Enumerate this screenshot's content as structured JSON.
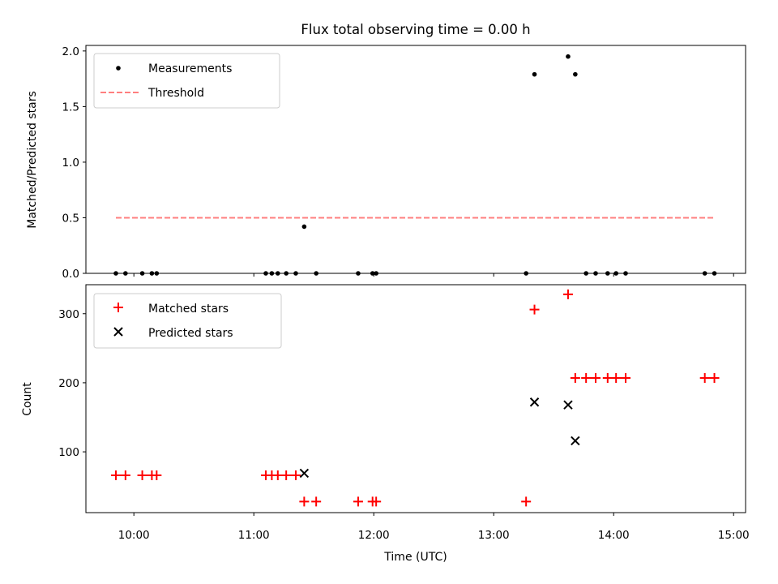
{
  "chart_data": [
    {
      "type": "scatter",
      "title": "Flux total observing time = 0.00 h",
      "xlabel": "",
      "ylabel": "Matched/Predicted stars",
      "xlim": [
        9.6,
        15.1
      ],
      "ylim": [
        0.0,
        2.05
      ],
      "yticks": [
        0.0,
        0.5,
        1.0,
        1.5,
        2.0
      ],
      "ytick_labels": [
        "0.0",
        "0.5",
        "1.0",
        "1.5",
        "2.0"
      ],
      "grid": false,
      "legend_position": "top-left",
      "series": [
        {
          "name": "Measurements",
          "marker": "dot",
          "color": "#000000",
          "points": [
            [
              9.85,
              0.0
            ],
            [
              9.93,
              0.0
            ],
            [
              10.07,
              0.0
            ],
            [
              10.15,
              0.0
            ],
            [
              10.19,
              0.0
            ],
            [
              11.1,
              0.0
            ],
            [
              11.15,
              0.0
            ],
            [
              11.2,
              0.0
            ],
            [
              11.27,
              0.0
            ],
            [
              11.35,
              0.0
            ],
            [
              11.42,
              0.42
            ],
            [
              11.52,
              0.0
            ],
            [
              11.87,
              0.0
            ],
            [
              11.99,
              0.0
            ],
            [
              12.02,
              0.0
            ],
            [
              13.27,
              0.0
            ],
            [
              13.34,
              1.79
            ],
            [
              13.62,
              1.95
            ],
            [
              13.68,
              1.79
            ],
            [
              13.77,
              0.0
            ],
            [
              13.85,
              0.0
            ],
            [
              13.95,
              0.0
            ],
            [
              14.02,
              0.0
            ],
            [
              14.1,
              0.0
            ],
            [
              14.76,
              0.0
            ],
            [
              14.84,
              0.0
            ]
          ]
        },
        {
          "name": "Threshold",
          "line_style": "dashed",
          "color": "#ff7f7f",
          "x": [
            9.85,
            14.84
          ],
          "y": [
            0.5,
            0.5
          ]
        }
      ]
    },
    {
      "type": "scatter",
      "title": "",
      "xlabel": "Time (UTC)",
      "ylabel": "Count",
      "xlim": [
        9.6,
        15.1
      ],
      "ylim": [
        12,
        342
      ],
      "yticks": [
        100,
        200,
        300
      ],
      "ytick_labels": [
        "100",
        "200",
        "300"
      ],
      "xticks": [
        10,
        11,
        12,
        13,
        14,
        15
      ],
      "xtick_labels": [
        "10:00",
        "11:00",
        "12:00",
        "13:00",
        "14:00",
        "15:00"
      ],
      "grid": false,
      "legend_position": "top-left",
      "series": [
        {
          "name": "Matched stars",
          "marker": "plus",
          "color": "#ff0000",
          "points": [
            [
              9.85,
              66
            ],
            [
              9.93,
              66
            ],
            [
              10.07,
              66
            ],
            [
              10.15,
              66
            ],
            [
              10.19,
              66
            ],
            [
              11.1,
              66
            ],
            [
              11.15,
              66
            ],
            [
              11.2,
              66
            ],
            [
              11.27,
              66
            ],
            [
              11.35,
              66
            ],
            [
              11.42,
              28
            ],
            [
              11.52,
              28
            ],
            [
              11.87,
              28
            ],
            [
              11.99,
              28
            ],
            [
              12.02,
              28
            ],
            [
              13.27,
              28
            ],
            [
              13.34,
              306
            ],
            [
              13.62,
              328
            ],
            [
              13.68,
              207
            ],
            [
              13.77,
              207
            ],
            [
              13.85,
              207
            ],
            [
              13.95,
              207
            ],
            [
              14.02,
              207
            ],
            [
              14.1,
              207
            ],
            [
              14.76,
              207
            ],
            [
              14.84,
              207
            ]
          ]
        },
        {
          "name": "Predicted stars",
          "marker": "x",
          "color": "#000000",
          "points": [
            [
              11.42,
              69
            ],
            [
              13.34,
              172
            ],
            [
              13.62,
              168
            ],
            [
              13.68,
              116
            ]
          ]
        }
      ]
    }
  ]
}
